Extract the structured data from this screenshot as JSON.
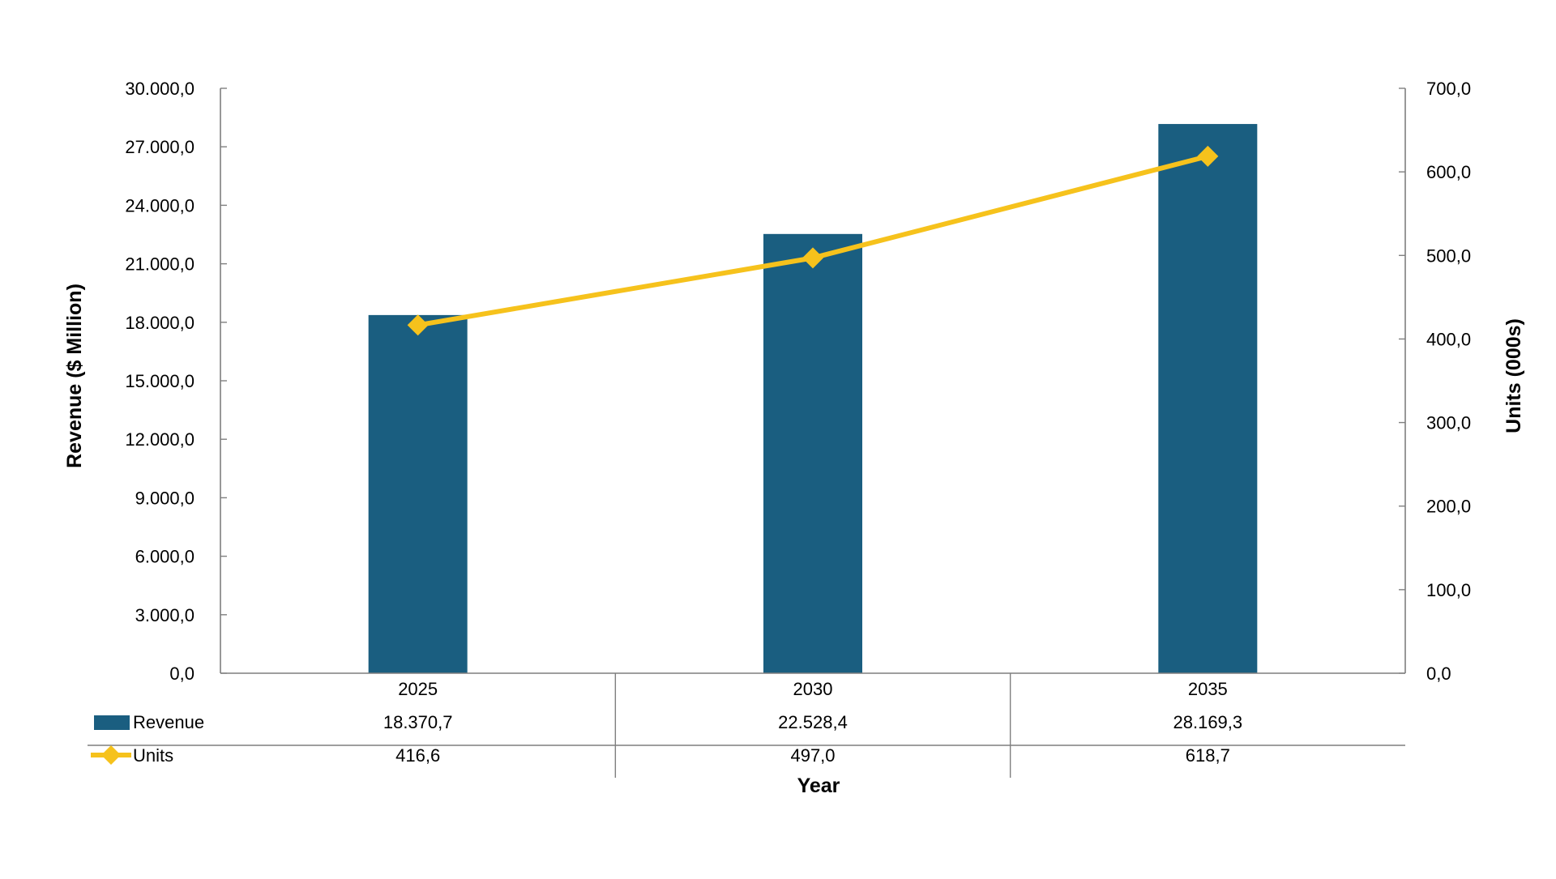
{
  "chart_data": {
    "type": "bar",
    "categories": [
      "2025",
      "2030",
      "2035"
    ],
    "series": [
      {
        "name": "Revenue",
        "type": "bar",
        "axis": "left",
        "color": "#1a5e80",
        "values": [
          18370.7,
          22528.4,
          28169.3
        ],
        "value_labels": [
          "18.370,7",
          "22.528,4",
          "28.169,3"
        ]
      },
      {
        "name": "Units",
        "type": "line",
        "axis": "right",
        "color": "#f6c21c",
        "marker": "diamond",
        "values": [
          416.6,
          497.0,
          618.7
        ],
        "value_labels": [
          "416,6",
          "497,0",
          "618,7"
        ]
      }
    ],
    "xlabel": "Year",
    "ylabel": "Revenue ($ Million)",
    "ylabel_right": "Units (000s)",
    "ylim": [
      0,
      30000
    ],
    "ylim_right": [
      0,
      700
    ],
    "yticks": [
      0,
      3000,
      6000,
      9000,
      12000,
      15000,
      18000,
      21000,
      24000,
      27000,
      30000
    ],
    "ytick_labels": [
      "0,0",
      "3.000,0",
      "6.000,0",
      "9.000,0",
      "12.000,0",
      "15.000,0",
      "18.000,0",
      "21.000,0",
      "24.000,0",
      "27.000,0",
      "30.000,0"
    ],
    "yticks_right": [
      0,
      100,
      200,
      300,
      400,
      500,
      600,
      700
    ],
    "ytick_labels_right": [
      "0,0",
      "100,0",
      "200,0",
      "300,0",
      "400,0",
      "500,0",
      "600,0",
      "700,0"
    ],
    "grid": false,
    "data_table": true,
    "axis_color": "#7f7f7f"
  }
}
